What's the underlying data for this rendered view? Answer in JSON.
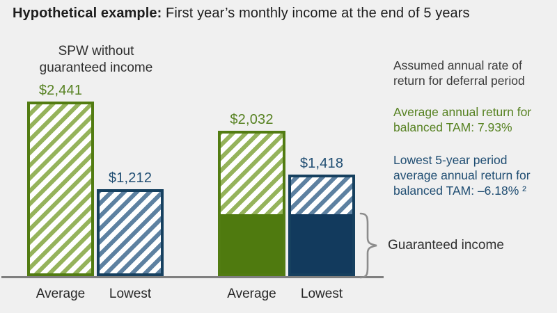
{
  "title": {
    "lead": "Hypothetical example:",
    "rest": " First year’s monthly income at the end of 5 years"
  },
  "left_group_header": "SPW without\nguaranteed income",
  "chart_data": {
    "type": "bar",
    "title": "Hypothetical example: First year’s monthly income at the end of 5 years",
    "group_labels": [
      "SPW without guaranteed income"
    ],
    "categories": [
      "Average",
      "Lowest",
      "Average",
      "Lowest"
    ],
    "bars": [
      {
        "group": "SPW without guaranteed income",
        "category": "Average",
        "value": 2441,
        "label": "$2,441",
        "style": "green-hatched",
        "guaranteed_income_portion": false
      },
      {
        "group": "SPW without guaranteed income",
        "category": "Lowest",
        "value": 1212,
        "label": "$1,212",
        "style": "blue-hatched",
        "guaranteed_income_portion": false
      },
      {
        "category": "Average",
        "value": 2032,
        "label": "$2,032",
        "style": "green-hatched-with-solid-base",
        "guaranteed_income_portion": true
      },
      {
        "category": "Lowest",
        "value": 1418,
        "label": "$1,418",
        "style": "blue-hatched-with-solid-base",
        "guaranteed_income_portion": true
      }
    ],
    "brace_label": "Guaranteed income",
    "legend_position": "right",
    "grid": false
  },
  "annotations": {
    "assumed": "Assumed annual rate of\nreturn for deferral period",
    "average_return": "Average annual return for\nbalanced TAM: 7.93%",
    "lowest_return": "Lowest 5-year period\naverage annual return for\nbalanced TAM: –6.18% ²",
    "guaranteed": "Guaranteed income"
  },
  "colors": {
    "background": "#f0f0f0",
    "green_solid": "#4f7a0f",
    "green_border": "#527c12",
    "green_stripe": "#95b35b",
    "green_text": "#578222",
    "navy_solid": "#123a5d",
    "navy_border": "#16405f",
    "blue_stripe": "#5d81a1",
    "blue_text": "#1f4d72",
    "baseline": "#7f7f7f",
    "brace": "#8c8c8c",
    "text_dark": "#3a3a3a"
  }
}
